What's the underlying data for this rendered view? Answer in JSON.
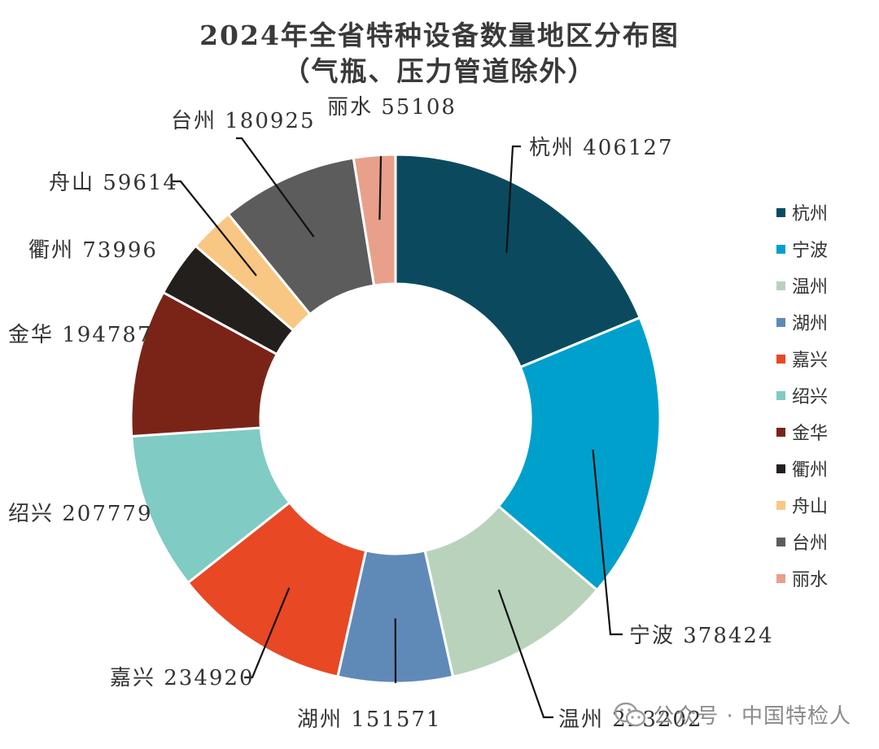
{
  "chart_data": {
    "type": "pie",
    "donut": true,
    "title": "2024年全省特种设备数量地区分布图",
    "subtitle": "（气瓶、压力管道除外）",
    "legend_position": "right",
    "slices": [
      {
        "label": "杭州",
        "value": 406127,
        "color": "#0b4a5e"
      },
      {
        "label": "宁波",
        "value": 378424,
        "color": "#00a0cc"
      },
      {
        "label": "温州",
        "value": 223202,
        "color": "#b9d2bc"
      },
      {
        "label": "湖州",
        "value": 151571,
        "color": "#5f8ab8"
      },
      {
        "label": "嘉兴",
        "value": 234920,
        "color": "#e84824"
      },
      {
        "label": "绍兴",
        "value": 207779,
        "color": "#80cbc4"
      },
      {
        "label": "金华",
        "value": 194787,
        "color": "#7a2418"
      },
      {
        "label": "衢州",
        "value": 73996,
        "color": "#231f1d"
      },
      {
        "label": "舟山",
        "value": 59614,
        "color": "#f9c784"
      },
      {
        "label": "台州",
        "value": 180925,
        "color": "#5c5c5c"
      },
      {
        "label": "丽水",
        "value": 55108,
        "color": "#e8a08a"
      }
    ]
  },
  "watermark": {
    "text": "公众号 · 中国特检人",
    "icon": "wechat-icon"
  }
}
